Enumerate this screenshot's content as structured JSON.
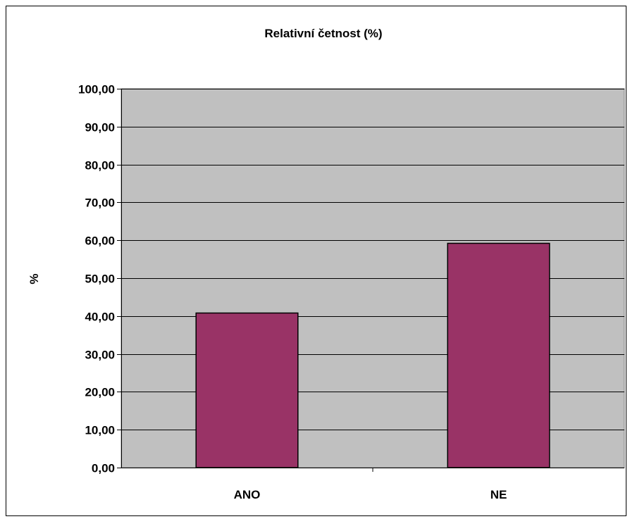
{
  "chart_data": {
    "type": "bar",
    "title": "Relativní četnost (%)",
    "xlabel": "",
    "ylabel": "%",
    "categories": [
      "ANO",
      "NE"
    ],
    "values": [
      40.8,
      59.2
    ],
    "ylim": [
      0,
      100
    ],
    "yticks": [
      "0,00",
      "10,00",
      "20,00",
      "30,00",
      "40,00",
      "50,00",
      "60,00",
      "70,00",
      "80,00",
      "90,00",
      "100,00"
    ],
    "grid": true,
    "legend": "none",
    "colors": {
      "bar_fill": "#993366",
      "plot_background": "#c0c0c0",
      "grid": "#000000"
    }
  }
}
